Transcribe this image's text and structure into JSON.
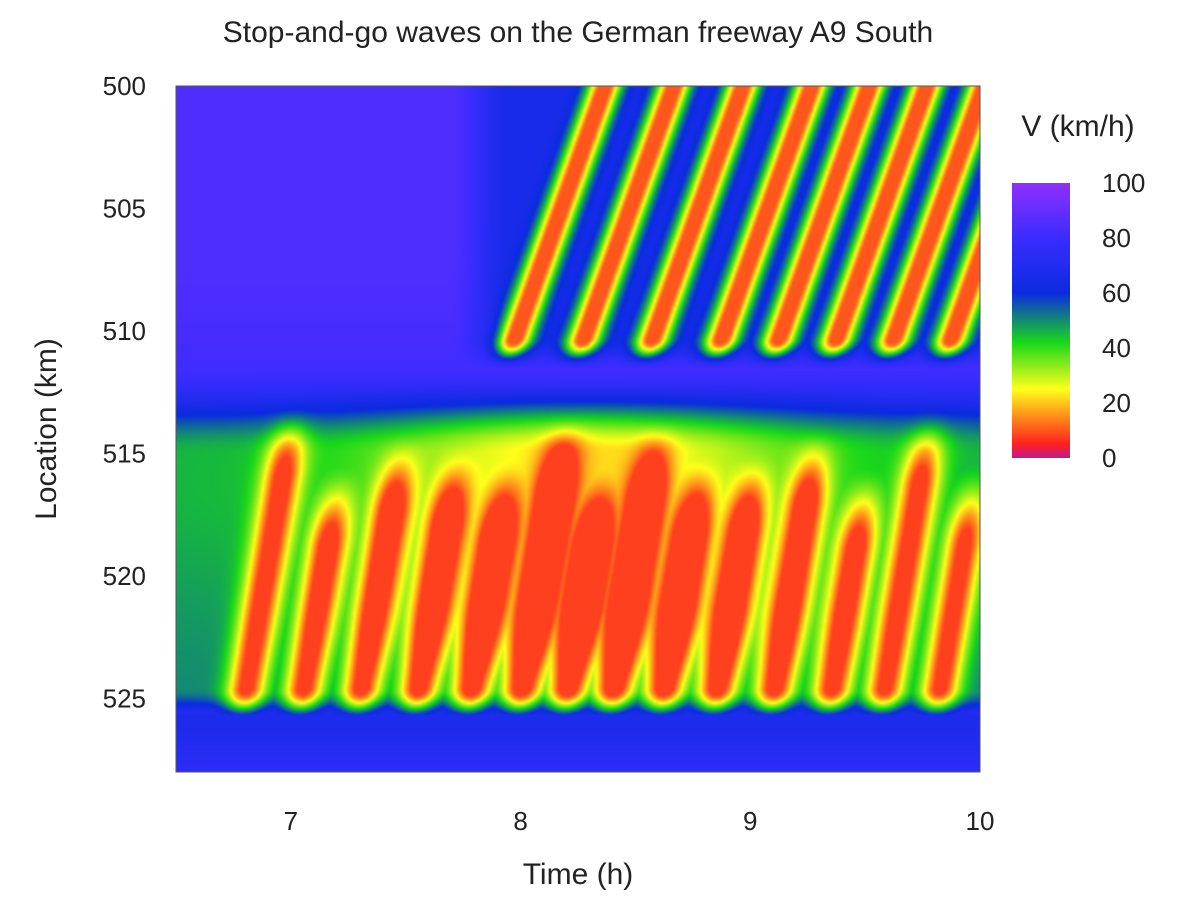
{
  "chart_data": {
    "type": "heatmap",
    "title": "Stop-and-go waves on the German freeway A9 South",
    "xlabel": "Time (h)",
    "ylabel": "Location (km)",
    "xlim": [
      6.5,
      10
    ],
    "ylim": [
      500,
      528
    ],
    "y_inverted": true,
    "x_ticks": [
      7,
      8,
      9,
      10
    ],
    "y_ticks": [
      500,
      505,
      510,
      515,
      520,
      525
    ],
    "colorbar": {
      "label": "V (km/h)",
      "ticks": [
        100,
        80,
        60,
        40,
        20,
        0
      ],
      "stops": [
        {
          "v": 0,
          "color": "#c21a8c"
        },
        {
          "v": 5,
          "color": "#ff1f1f"
        },
        {
          "v": 15,
          "color": "#ff8c1a"
        },
        {
          "v": 25,
          "color": "#ffff1a"
        },
        {
          "v": 42,
          "color": "#19d819"
        },
        {
          "v": 60,
          "color": "#0a2be0"
        },
        {
          "v": 80,
          "color": "#3a2cff"
        },
        {
          "v": 100,
          "color": "#8f2fff"
        }
      ]
    },
    "free_flow_speed_kmh": 85,
    "lower_jam": {
      "km_range": [
        513,
        525
      ],
      "time_range": [
        6.5,
        10
      ],
      "waves": [
        6.8,
        7.05,
        7.3,
        7.55,
        7.78,
        8.0,
        8.2,
        8.4,
        8.62,
        8.85,
        9.1,
        9.35,
        9.58,
        9.82
      ],
      "core_speed_kmh": 8,
      "edge_speed_kmh": 40
    },
    "upper_jam": {
      "km_range": [
        500,
        511
      ],
      "time_range": [
        7.7,
        10
      ],
      "waves": [
        7.95,
        8.25,
        8.55,
        8.85,
        9.1,
        9.35,
        9.6,
        9.85
      ],
      "core_speed_kmh": 10,
      "edge_speed_kmh": 45
    }
  }
}
